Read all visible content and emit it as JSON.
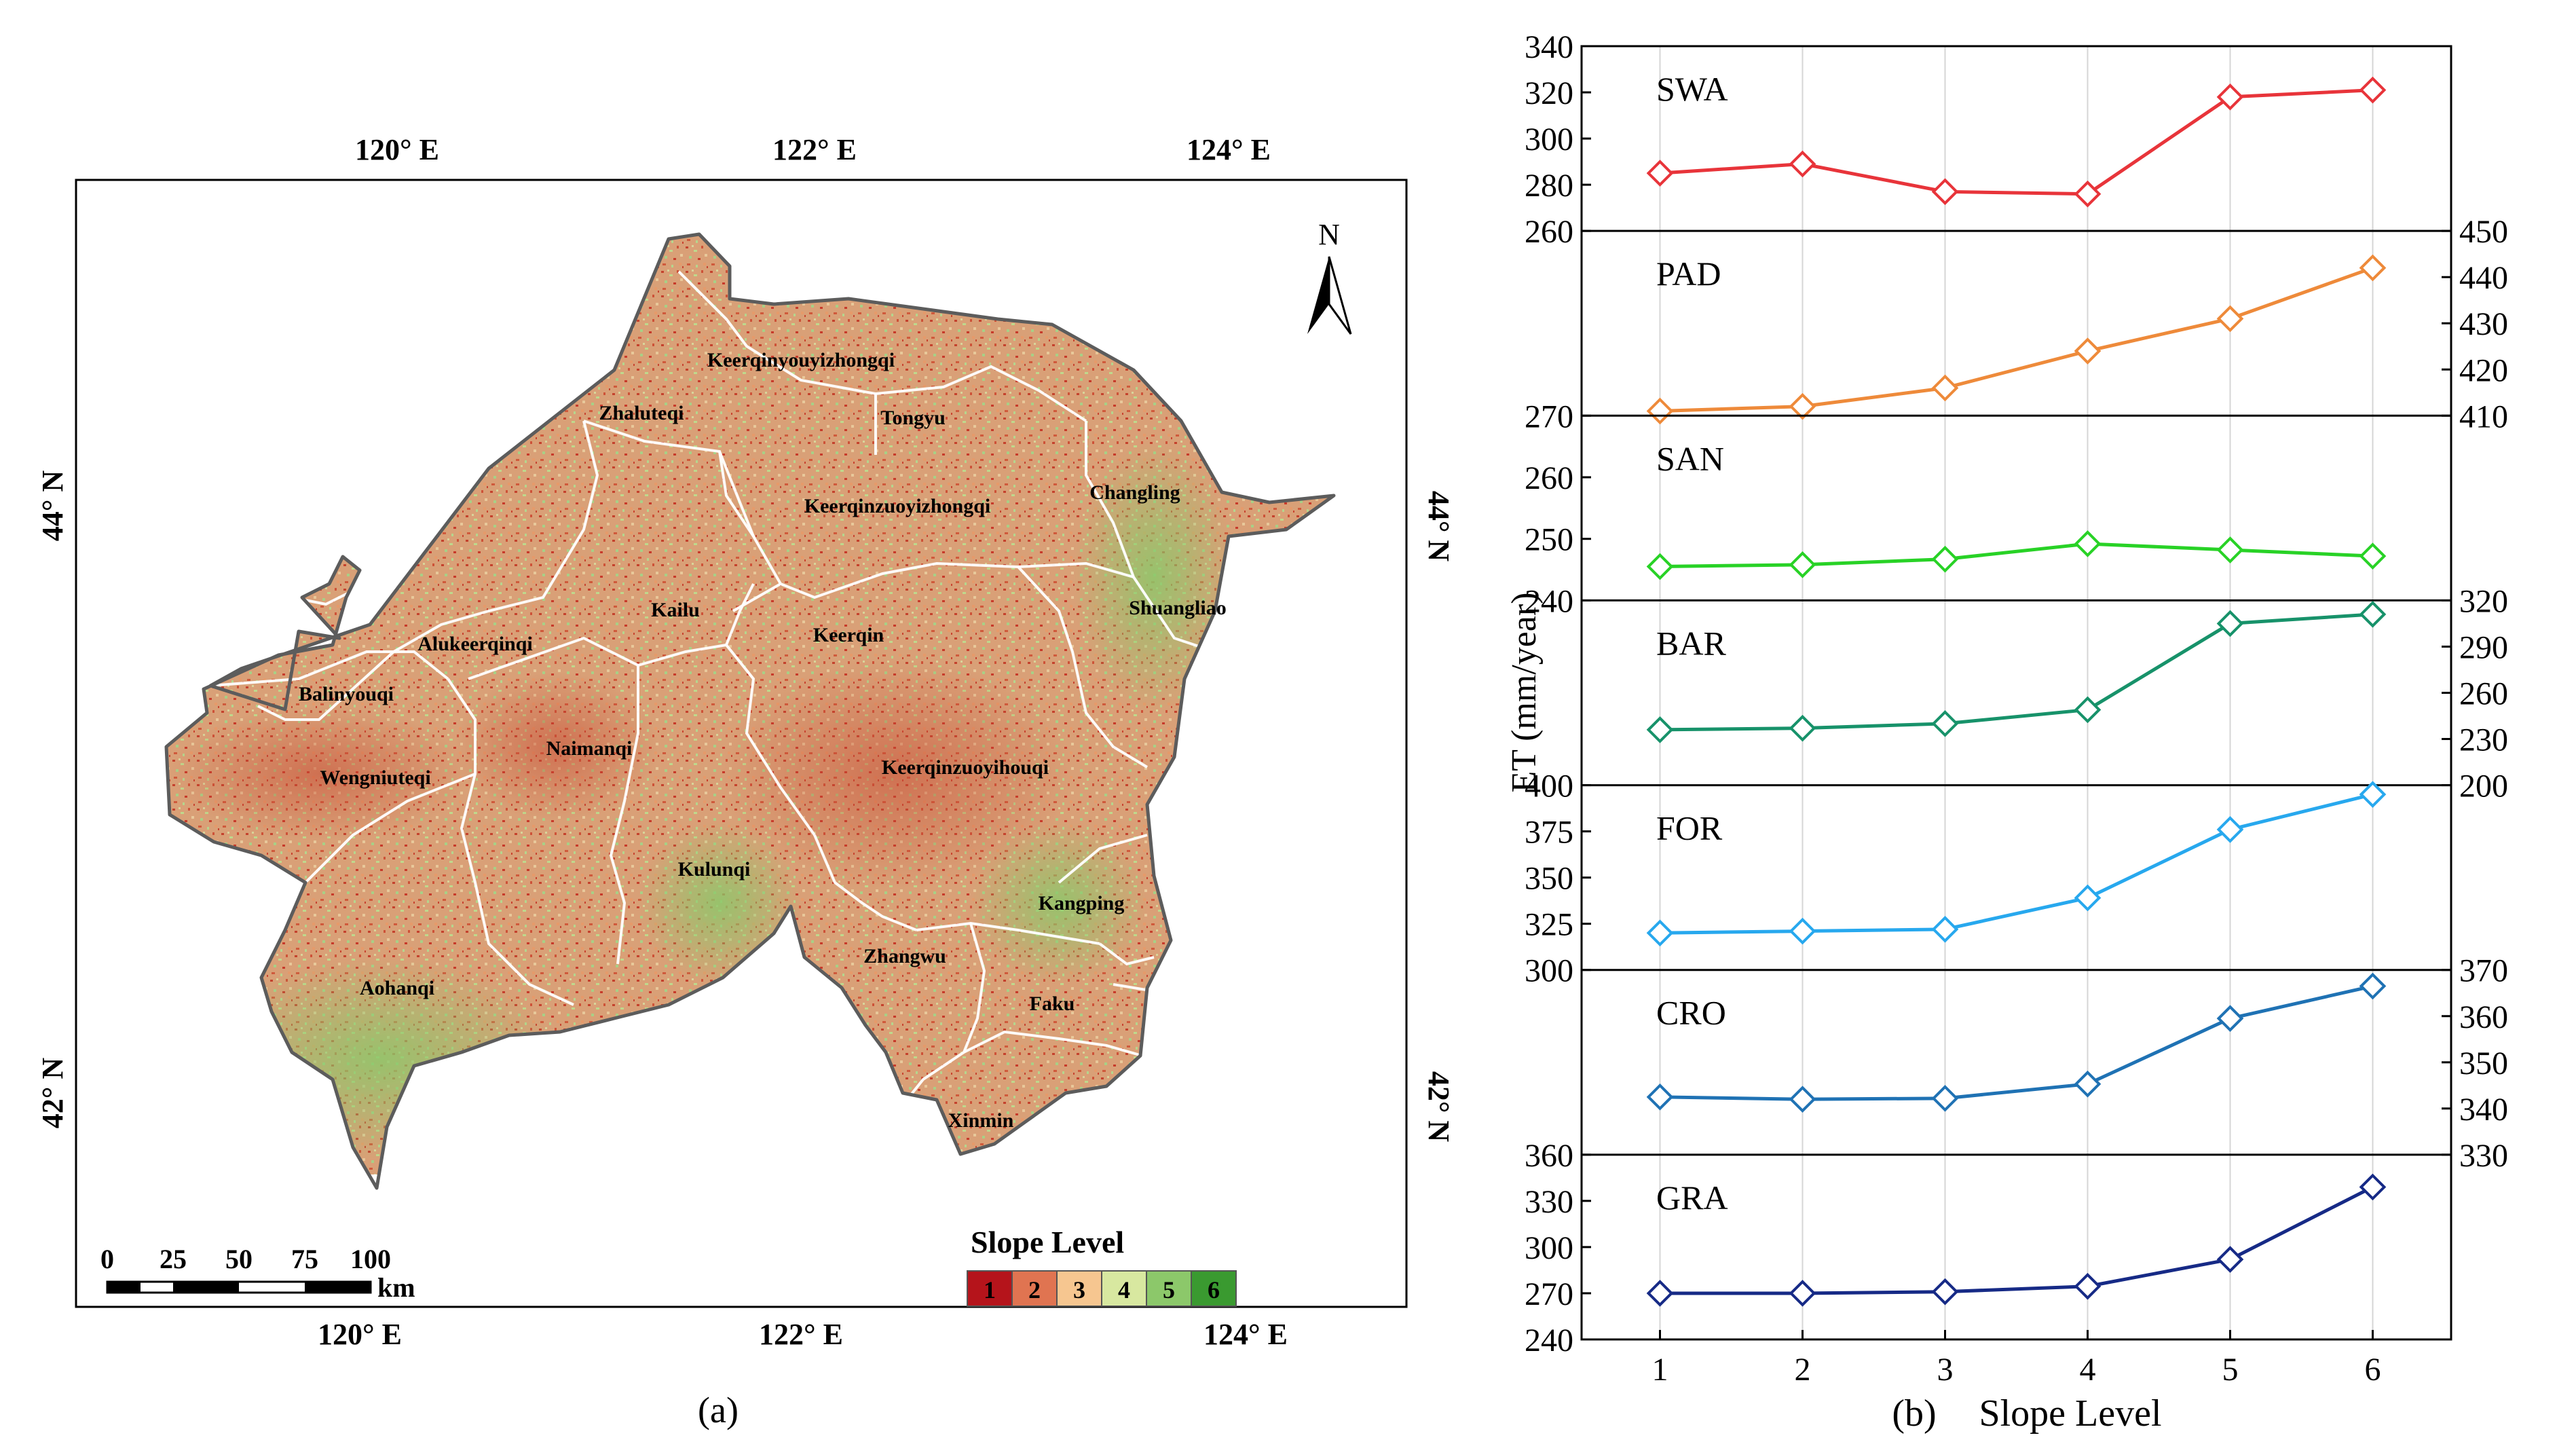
{
  "panel_a": {
    "caption": "(a)",
    "top_ticks": [
      "120° E",
      "122° E",
      "124° E"
    ],
    "bottom_ticks": [
      "120° E",
      "122° E",
      "124° E"
    ],
    "left_ticks": [
      "44° N",
      "42° N"
    ],
    "right_ticks": [
      "44° N",
      "42° N"
    ],
    "north_label": "N",
    "scale_labels": [
      "0",
      "25",
      "50",
      "75",
      "100"
    ],
    "scale_unit": "km",
    "legend_title": "Slope Level",
    "legend_items": [
      "1",
      "2",
      "3",
      "4",
      "5",
      "6"
    ],
    "legend_colors": [
      "#b5141b",
      "#e07451",
      "#f6c690",
      "#d8e8a0",
      "#8cc86a",
      "#3a9a30"
    ],
    "regions": [
      "Keerqinyouyizhongqi",
      "Zhaluteqi",
      "Tongyu",
      "Changling",
      "Keerqinzuoyizhongqi",
      "Kailu",
      "Alukeerqinqi",
      "Keerqin",
      "Shuangliao",
      "Balinyouqi",
      "Naimanqi",
      "Wengniuteqi",
      "Keerqinzuoyihouqi",
      "Kulunqi",
      "Kangping",
      "Zhangwu",
      "Aohanqi",
      "Faku",
      "Xinmin"
    ]
  },
  "chart_data": {
    "type": "line",
    "caption": "(b)",
    "xlabel": "Slope Level",
    "ylabel": "ET (mm/year)",
    "x": [
      1,
      2,
      3,
      4,
      5,
      6
    ],
    "series": [
      {
        "name": "SWA",
        "color": "#e8343a",
        "values": [
          285,
          289,
          277,
          276,
          318,
          321
        ],
        "ylim": [
          260,
          340
        ],
        "ticks": [
          260,
          280,
          300,
          320,
          340
        ],
        "axis": "left"
      },
      {
        "name": "PAD",
        "color": "#ee8a3a",
        "values": [
          411,
          412,
          416,
          424,
          431,
          442
        ],
        "ylim": [
          410,
          450
        ],
        "ticks": [
          410,
          420,
          430,
          440,
          450
        ],
        "axis": "right"
      },
      {
        "name": "SAN",
        "color": "#28d226",
        "values": [
          245.5,
          245.8,
          246.7,
          249.2,
          248.2,
          247.2
        ],
        "ylim": [
          240,
          270
        ],
        "ticks": [
          240,
          250,
          260,
          270
        ],
        "axis": "left"
      },
      {
        "name": "BAR",
        "color": "#17926a",
        "values": [
          236,
          237,
          240,
          249,
          305,
          311
        ],
        "ylim": [
          200,
          320
        ],
        "ticks": [
          200,
          230,
          260,
          290,
          320
        ],
        "axis": "right"
      },
      {
        "name": "FOR",
        "color": "#27a8ee",
        "values": [
          320,
          321,
          322,
          339,
          376,
          395
        ],
        "ylim": [
          300,
          400
        ],
        "ticks": [
          300,
          325,
          350,
          375,
          400
        ],
        "axis": "left"
      },
      {
        "name": "CRO",
        "color": "#1f72b4",
        "values": [
          342.5,
          342,
          342.2,
          345.3,
          359.5,
          366.5
        ],
        "ylim": [
          330,
          370
        ],
        "ticks": [
          330,
          340,
          350,
          360,
          370
        ],
        "axis": "right"
      },
      {
        "name": "GRA",
        "color": "#162a86",
        "values": [
          270,
          270,
          271,
          274.5,
          292,
          339
        ],
        "ylim": [
          240,
          360
        ],
        "ticks": [
          240,
          270,
          300,
          330,
          360
        ],
        "axis": "left"
      }
    ]
  }
}
